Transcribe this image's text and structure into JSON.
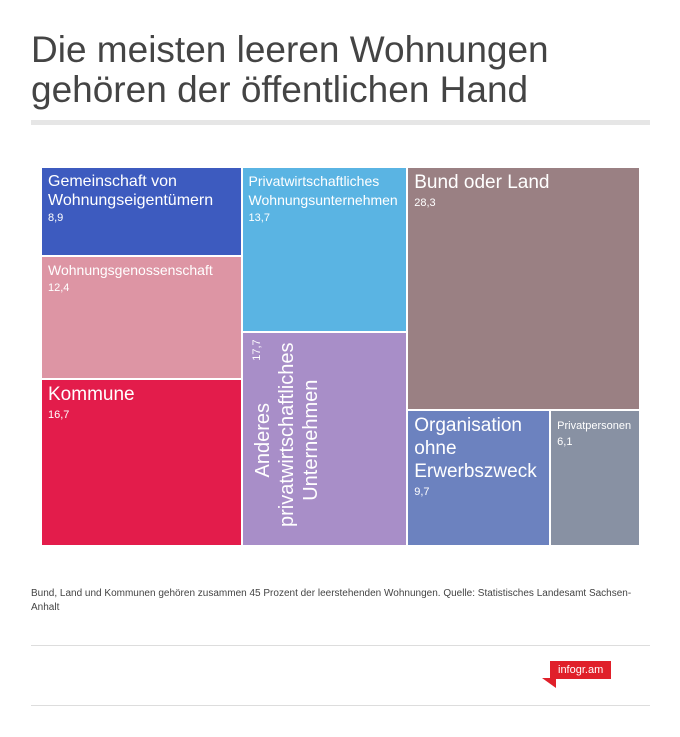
{
  "chart_data": {
    "type": "treemap",
    "title": "Die meisten leeren Wohnungen gehören der öffentlichen Hand",
    "categories": [
      "Gemeinschaft von Wohnungseigentümern",
      "Wohnungsgenossenschaft",
      "Kommune",
      "Privatwirtschaftliches Wohnungsunternehmen",
      "Anderes privatwirtschaftliches Unternehmen",
      "Bund oder Land",
      "Organisation ohne Erwerbszweck",
      "Privatpersonen"
    ],
    "values": [
      8.9,
      12.4,
      16.7,
      13.7,
      17.7,
      28.3,
      9.7,
      6.1
    ],
    "value_labels": [
      "8,9",
      "12,4",
      "16,7",
      "13,7",
      "17,7",
      "28,3",
      "9,7",
      "6,1"
    ],
    "colors": [
      "#3d5bbf",
      "#dd95a4",
      "#e31c4b",
      "#5ab4e3",
      "#a88ec8",
      "#9a8083",
      "#6c82bf",
      "#8891a3"
    ],
    "note": "Bund, Land und Kommunen gehören zusammen 45 Prozent der leerstehenden Wohnungen. Quelle: Statistisches Landesamt Sachsen-Anhalt",
    "source_logo": "infogr.am"
  }
}
